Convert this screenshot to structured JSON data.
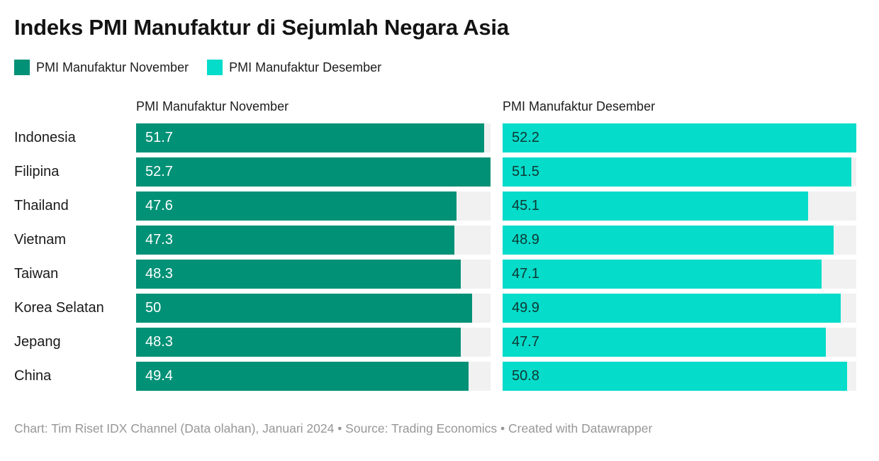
{
  "title": "Indeks PMI Manufaktur di Sejumlah Negara Asia",
  "legend": [
    {
      "label": "PMI Manufaktur November",
      "color": "#009176"
    },
    {
      "label": "PMI Manufaktur Desember",
      "color": "#06dcca"
    }
  ],
  "columns": [
    {
      "header": "PMI Manufaktur November",
      "bar_color": "#009176",
      "value_text_color": "#ffffff",
      "axis_max": 52.7
    },
    {
      "header": "PMI Manufaktur Desember",
      "bar_color": "#06dcca",
      "value_text_color": "#0e3833",
      "axis_max": 52.2
    }
  ],
  "track_color": "#f1f1f2",
  "footer": "Chart: Tim Riset IDX Channel (Data olahan), Januari 2024 • Source: Trading Economics • Created with Datawrapper",
  "chart_data": {
    "type": "bar",
    "orientation": "horizontal",
    "title": "Indeks PMI Manufaktur di Sejumlah Negara Asia",
    "categories": [
      "Indonesia",
      "Filipina",
      "Thailand",
      "Vietnam",
      "Taiwan",
      "Korea Selatan",
      "Jepang",
      "China"
    ],
    "series": [
      {
        "name": "PMI Manufaktur November",
        "values": [
          51.7,
          52.7,
          47.6,
          47.3,
          48.3,
          50,
          48.3,
          49.4
        ]
      },
      {
        "name": "PMI Manufaktur Desember",
        "values": [
          52.2,
          51.5,
          45.1,
          48.9,
          47.1,
          49.9,
          47.7,
          50.8
        ]
      }
    ],
    "value_labels": "inside-start",
    "axis_range": [
      0,
      "column max"
    ],
    "grid": false,
    "legend_position": "top"
  }
}
